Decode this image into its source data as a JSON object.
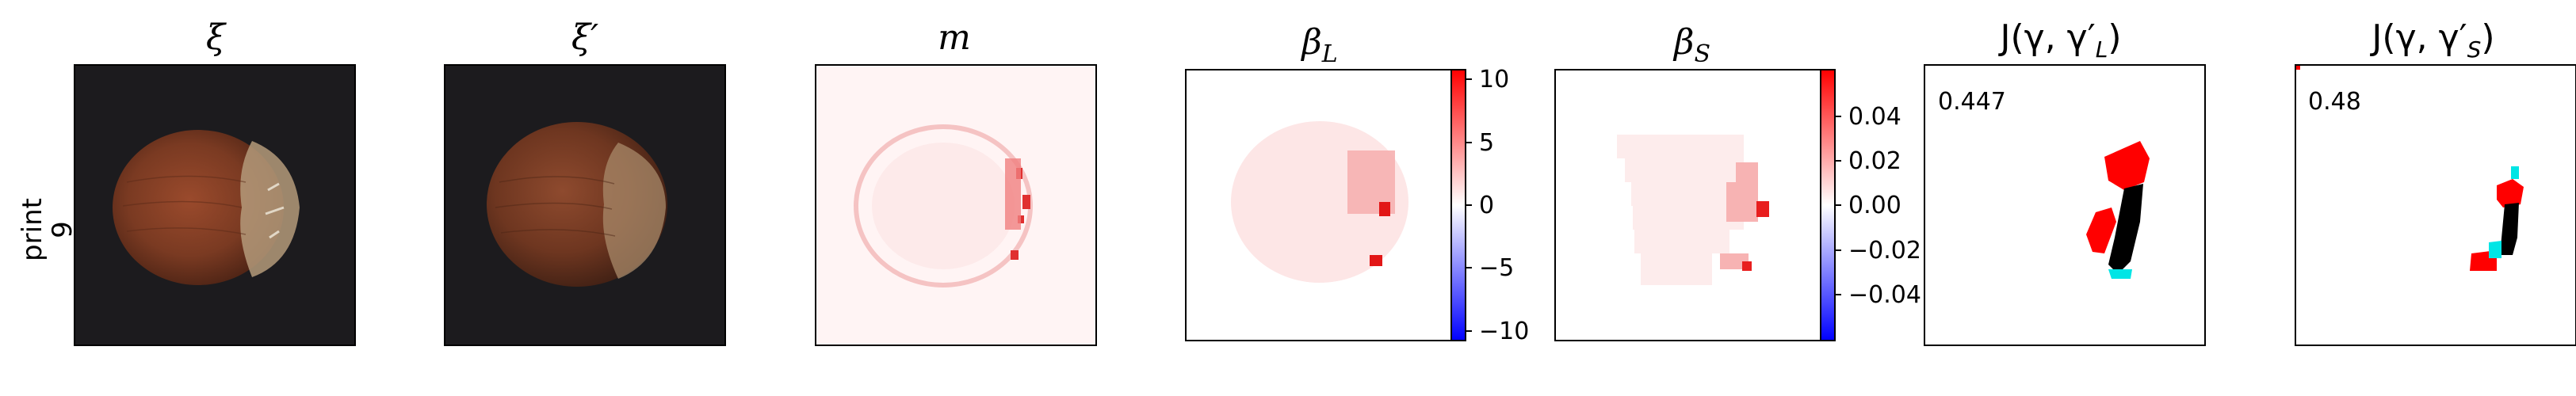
{
  "row_label": {
    "line1": "print",
    "line2": "9"
  },
  "panels": {
    "xi": {
      "title": "ξ"
    },
    "xi_prime": {
      "title": "ξ′"
    },
    "m": {
      "title": "m"
    },
    "beta_l": {
      "title_main": "β",
      "title_sub": "L",
      "colorbar_ticks": [
        "10",
        "5",
        "0",
        "−5",
        "−10"
      ]
    },
    "beta_s": {
      "title_main": "β",
      "title_sub": "S",
      "colorbar_ticks": [
        "0.04",
        "0.02",
        "0.00",
        "−0.02",
        "−0.04"
      ]
    },
    "j_l": {
      "title_prefix": "J(γ, γ′",
      "title_sub": "L",
      "title_suffix": ")",
      "score": "0.447"
    },
    "j_s": {
      "title_prefix": "J(γ, γ′",
      "title_sub": "S",
      "title_suffix": ")",
      "score": "0.48"
    }
  },
  "colors": {
    "background": "#ffffff",
    "photo_bg": "#1c1b1e",
    "nut_brown": "#7a3a22",
    "nut_cap": "#b49a7a",
    "positive": "#ff0000",
    "negative": "#0000ff",
    "mask_black": "#000000",
    "mask_cyan": "#00e5e5"
  }
}
